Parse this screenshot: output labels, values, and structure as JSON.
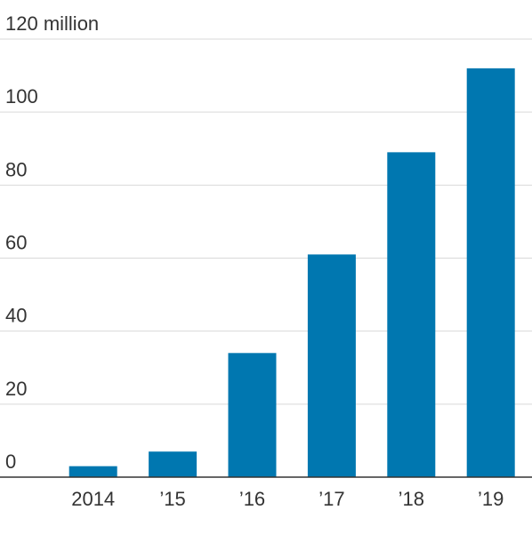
{
  "chart_data": {
    "type": "bar",
    "title": "",
    "xlabel": "",
    "ylabel": "",
    "categories": [
      "2014",
      "’15",
      "’16",
      "’17",
      "’18",
      "’19"
    ],
    "values": [
      3,
      7,
      34,
      61,
      89,
      112
    ],
    "ylim": [
      0,
      120
    ],
    "yticks": [
      0,
      20,
      40,
      60,
      80,
      100,
      120
    ],
    "ytick_labels": [
      "0",
      "20",
      "40",
      "60",
      "80",
      "100",
      "120 million"
    ],
    "grid": true,
    "colors": {
      "bar": "#0077b0",
      "grid": "#d9d9d9",
      "axis": "#333333",
      "text": "#333333"
    }
  }
}
